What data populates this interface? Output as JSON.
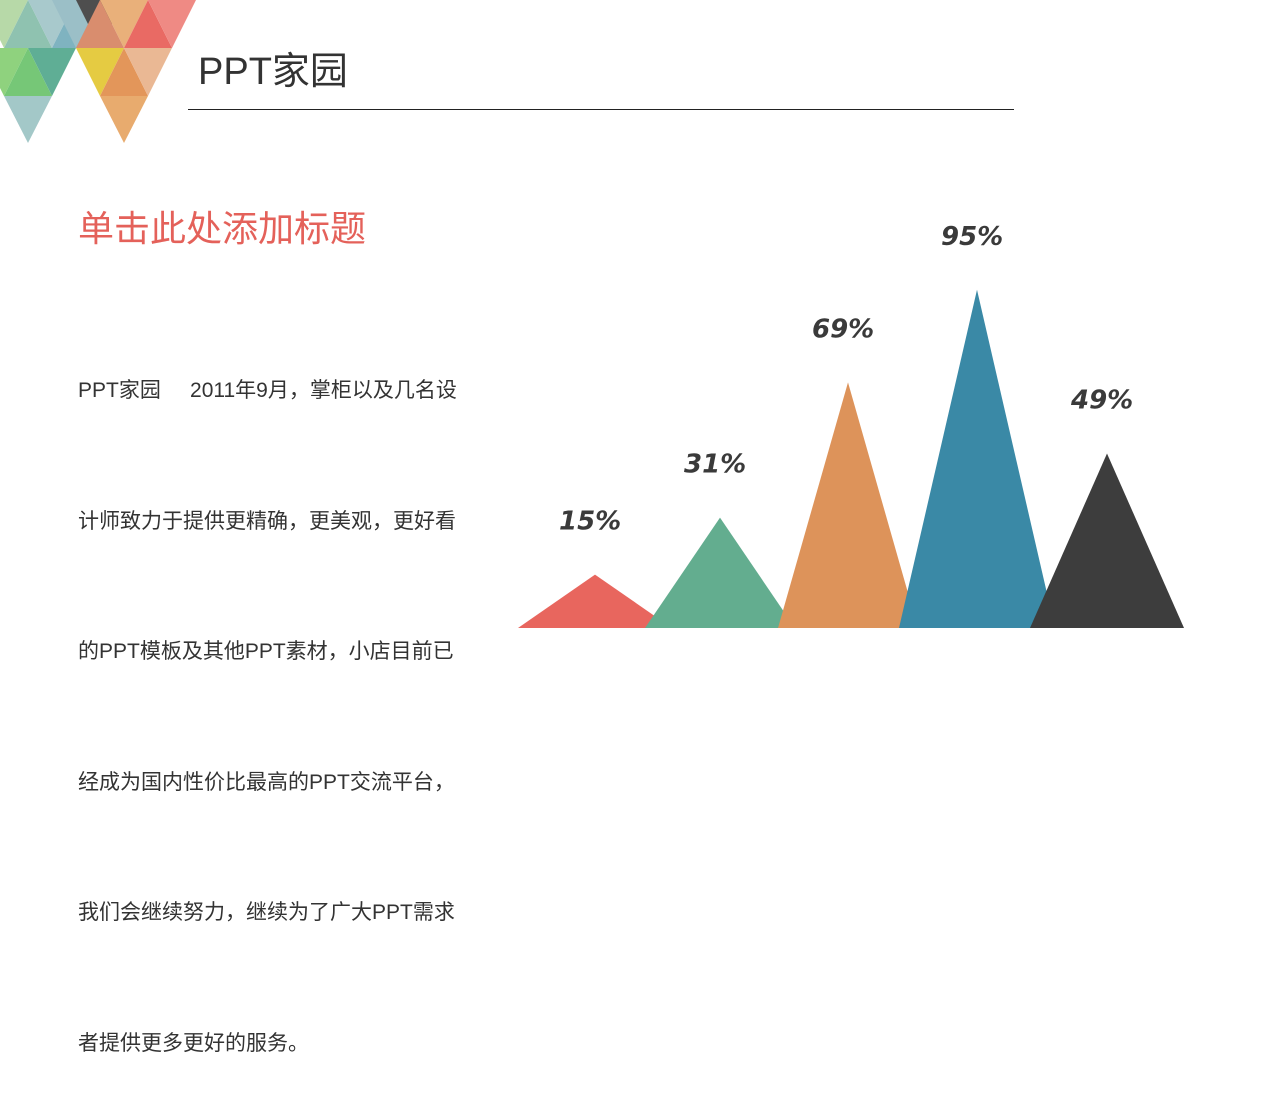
{
  "slide": {
    "brand": "PPT家园",
    "heading": "单击此处添加标题",
    "body_lines": [
      "PPT家园     2011年9月，掌柜以及几名设",
      "计师致力于提供更精确，更美观，更好看",
      "的PPT模板及其他PPT素材，小店目前已",
      "经成为国内性价比最高的PPT交流平台，",
      "我们会继续努力，继续为了广大PPT需求",
      "者提供更多更好的服务。"
    ]
  },
  "colors": {
    "heading": "#e4615a",
    "text": "#333333"
  },
  "chart_data": {
    "type": "bar",
    "mark": "triangle",
    "categories": [
      "",
      "",
      "",
      "",
      ""
    ],
    "values": [
      15,
      31,
      69,
      95,
      49
    ],
    "labels": [
      "15%",
      "31%",
      "69%",
      "95%",
      "49%"
    ],
    "colors": [
      "#e8665e",
      "#63ad8f",
      "#dd935a",
      "#3a89a6",
      "#3d3d3d"
    ],
    "unit": "%",
    "ylim": [
      0,
      100
    ],
    "grid": false,
    "axes_visible": false
  }
}
